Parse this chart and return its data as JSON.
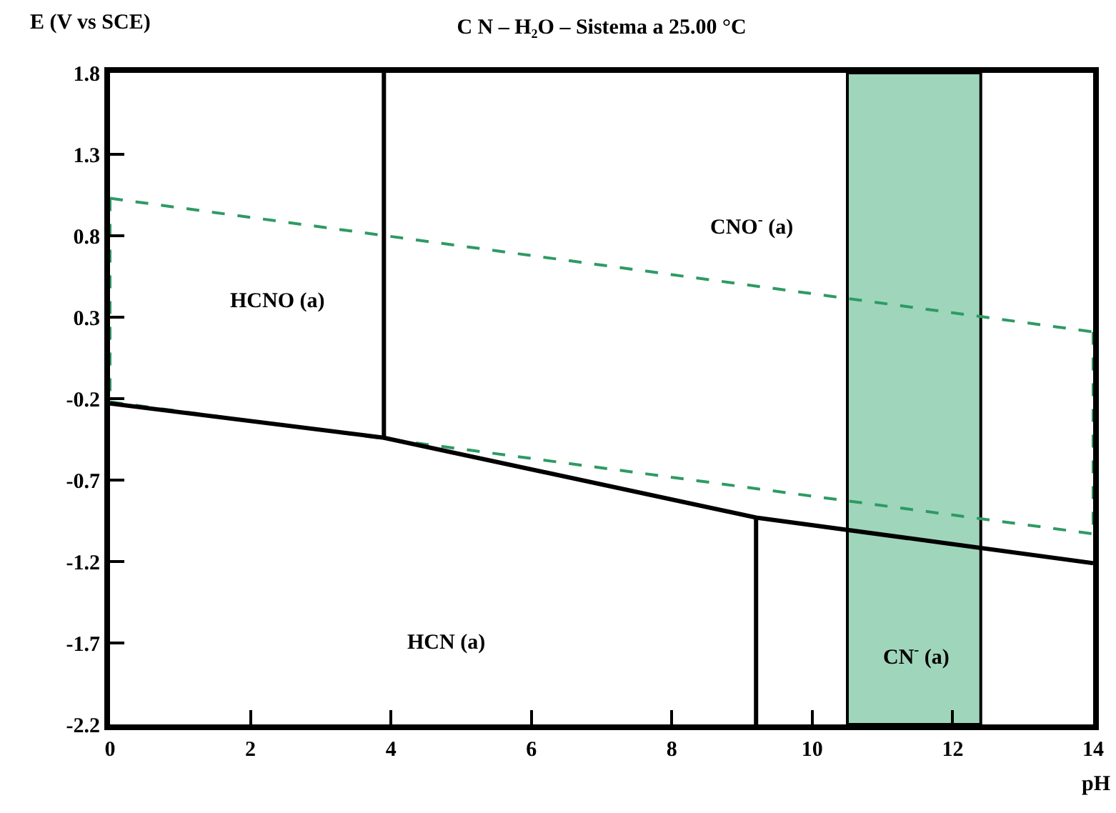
{
  "chart_data": {
    "type": "line",
    "title": "C N – H₂O – Sistema a 25.00 °C",
    "xlabel": "pH",
    "ylabel": "E (V vs SCE)",
    "xlim": [
      0,
      14
    ],
    "ylim": [
      -2.2,
      1.8
    ],
    "xticks": [
      0,
      2,
      4,
      6,
      8,
      10,
      12,
      14
    ],
    "yticks": [
      1.8,
      1.3,
      0.8,
      0.3,
      -0.2,
      -0.7,
      -1.2,
      -1.7,
      -2.2
    ],
    "grid": false,
    "marker": "none",
    "bands": [
      {
        "axis": "x",
        "from": 10.5,
        "to": 12.4,
        "color": "#9fd6bb"
      }
    ],
    "series": [
      {
        "color": "#2e9a64",
        "line_style": "dashed",
        "x": [
          0,
          14
        ],
        "values": [
          1.03,
          0.21
        ]
      },
      {
        "color": "#2e9a64",
        "line_style": "dashed",
        "x": [
          0,
          14
        ],
        "values": [
          -0.22,
          -1.03
        ]
      },
      {
        "color": "#2e9a64",
        "line_style": "dashed",
        "x": [
          0,
          0
        ],
        "values": [
          1.03,
          -0.22
        ]
      },
      {
        "color": "#2e9a64",
        "line_style": "dashed",
        "x": [
          14,
          14
        ],
        "values": [
          0.21,
          -1.03
        ]
      },
      {
        "color": "#000000",
        "line_style": "solid",
        "x": [
          0,
          3.9,
          9.2,
          14
        ],
        "values": [
          -0.23,
          -0.44,
          -0.93,
          -1.21
        ]
      },
      {
        "color": "#000000",
        "line_style": "solid",
        "x": [
          3.9,
          3.9
        ],
        "values": [
          1.8,
          -0.44
        ]
      },
      {
        "color": "#000000",
        "line_style": "solid",
        "x": [
          9.2,
          9.2
        ],
        "values": [
          -0.93,
          -2.2
        ]
      }
    ],
    "annotations": [
      "HCNO (a)",
      "CNO$^{-}$ (a)",
      "HCN (a)",
      "CN$^{-}$ (a)"
    ]
  }
}
